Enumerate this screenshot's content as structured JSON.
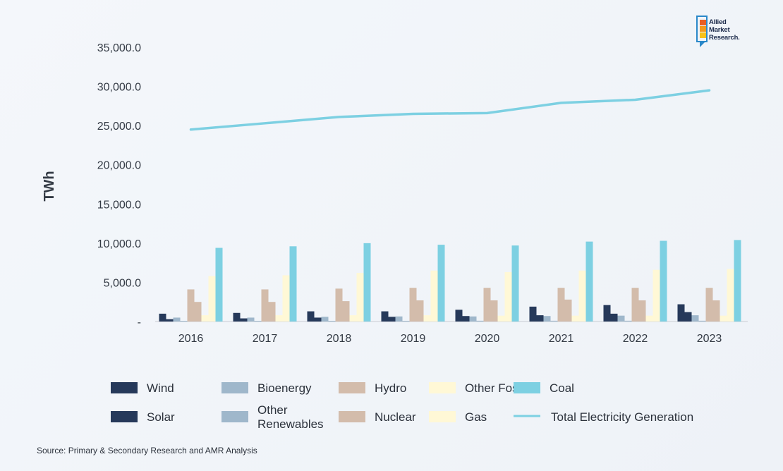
{
  "logo": {
    "line1": "Allied",
    "line2": "Market",
    "line3": "Research."
  },
  "source": "Source: Primary & Secondary Research and AMR Analysis",
  "chart_data": {
    "type": "bar",
    "ylabel": "TWh",
    "xlabel": "",
    "ylim": [
      0,
      35000
    ],
    "yticks": [
      0,
      5000,
      10000,
      15000,
      20000,
      25000,
      30000,
      35000
    ],
    "ytick_labels": [
      "-",
      "5,000.0",
      "10,000.0",
      "15,000.0",
      "20,000.0",
      "25,000.0",
      "30,000.0",
      "35,000.0"
    ],
    "categories": [
      "2016",
      "2017",
      "2018",
      "2019",
      "2020",
      "2021",
      "2022",
      "2023"
    ],
    "series": [
      {
        "name": "Wind",
        "color": "#26395a",
        "values": [
          1000,
          1100,
          1300,
          1300,
          1500,
          1900,
          2100,
          2200
        ]
      },
      {
        "name": "Solar",
        "color": "#26395a",
        "values": [
          300,
          400,
          500,
          600,
          700,
          800,
          1000,
          1200
        ]
      },
      {
        "name": "Bioenergy",
        "color": "#9fb7cb",
        "values": [
          500,
          500,
          600,
          650,
          650,
          700,
          750,
          800
        ]
      },
      {
        "name": "Other Renewables",
        "color": "#9fb7cb",
        "values": [
          90,
          90,
          90,
          90,
          100,
          100,
          100,
          100
        ]
      },
      {
        "name": "Hydro",
        "color": "#d3bcab",
        "values": [
          4100,
          4100,
          4200,
          4300,
          4300,
          4300,
          4300,
          4300
        ]
      },
      {
        "name": "Nuclear",
        "color": "#d3bcab",
        "values": [
          2500,
          2500,
          2600,
          2700,
          2700,
          2800,
          2700,
          2700
        ]
      },
      {
        "name": "Other Fossils",
        "color": "#fff8d6",
        "values": [
          800,
          800,
          800,
          800,
          750,
          750,
          750,
          750
        ]
      },
      {
        "name": "Gas",
        "color": "#fff8d6",
        "values": [
          5800,
          5900,
          6200,
          6500,
          6300,
          6500,
          6600,
          6700
        ]
      },
      {
        "name": "Coal",
        "color": "#7dd0e2",
        "values": [
          9400,
          9600,
          10000,
          9800,
          9700,
          10200,
          10300,
          10400
        ]
      }
    ],
    "line": {
      "name": "Total Electricity Generation",
      "color": "#7dd0e2",
      "values": [
        24500,
        25300,
        26100,
        26500,
        26600,
        27900,
        28300,
        29500
      ]
    },
    "legend": {
      "position": "bottom",
      "columns": [
        [
          {
            "label": "Wind",
            "kind": "bar",
            "color": "#26395a"
          },
          {
            "label": "Solar",
            "kind": "bar",
            "color": "#26395a"
          }
        ],
        [
          {
            "label": "Bioenergy",
            "kind": "bar",
            "color": "#9fb7cb"
          },
          {
            "label": "Other Renewables",
            "kind": "bar",
            "color": "#9fb7cb"
          }
        ],
        [
          {
            "label": "Hydro",
            "kind": "bar",
            "color": "#d3bcab"
          },
          {
            "label": "Nuclear",
            "kind": "bar",
            "color": "#d3bcab"
          }
        ],
        [
          {
            "label": "Other Fossils",
            "kind": "bar",
            "color": "#fff8d6"
          },
          {
            "label": "Gas",
            "kind": "bar",
            "color": "#fff8d6"
          }
        ],
        [
          {
            "label": "Coal",
            "kind": "bar",
            "color": "#7dd0e2"
          },
          {
            "label": "Total Electricity Generation",
            "kind": "line",
            "color": "#7dd0e2"
          }
        ]
      ]
    },
    "grid": false
  }
}
